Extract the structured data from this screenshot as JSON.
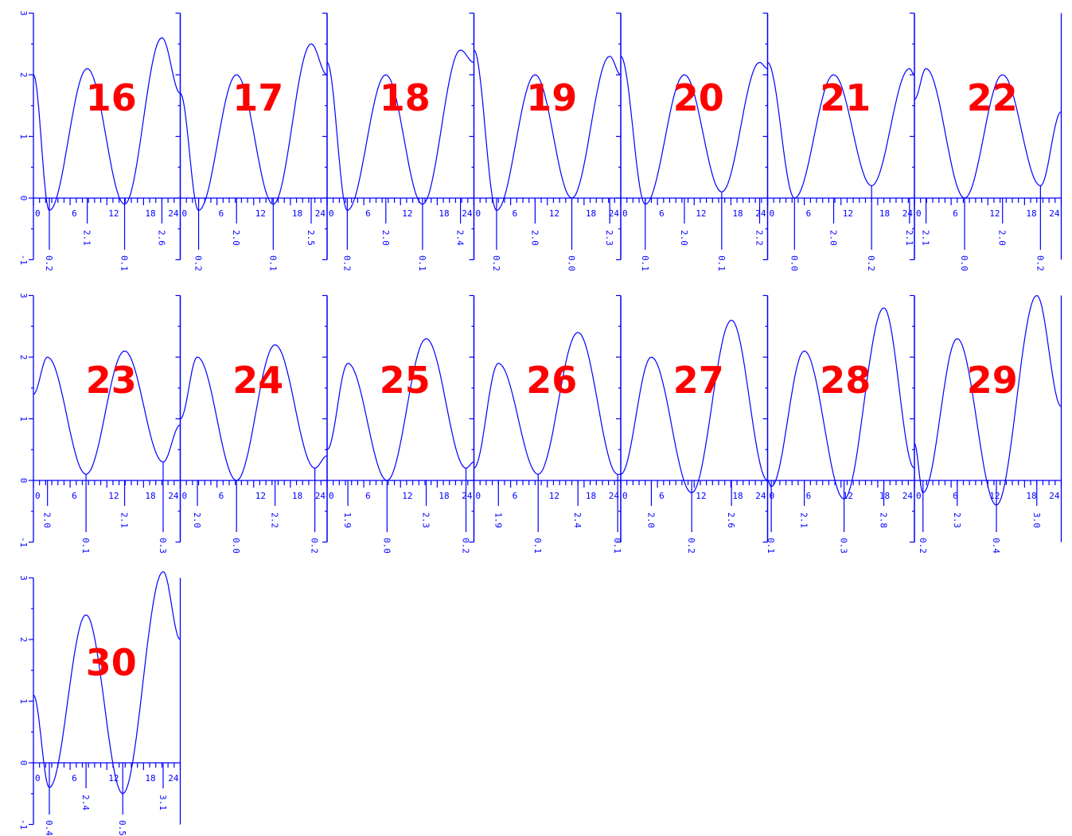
{
  "chart_data": {
    "type": "line",
    "layout": {
      "rows": 3,
      "columns": 7
    },
    "x_ticks": [
      0,
      6,
      12,
      18,
      24
    ],
    "x_tick_labels": [
      "0",
      "6",
      "12",
      "18",
      "24"
    ],
    "xlim": [
      0,
      24
    ],
    "y_ticks": [
      -1,
      0,
      1,
      2,
      3
    ],
    "y_tick_labels": [
      "-1",
      "0",
      "1",
      "2",
      "3"
    ],
    "ylim": [
      -1,
      3
    ],
    "colors": {
      "curve": "#0000ff",
      "label": "#ff0000",
      "axis": "#0000ff"
    },
    "panels": [
      {
        "label": "16",
        "extrema": [
          {
            "x": 0,
            "y": 2.0
          },
          {
            "x": 2.6,
            "y": -0.2
          },
          {
            "x": 8.8,
            "y": 2.1
          },
          {
            "x": 14.9,
            "y": -0.1
          },
          {
            "x": 21.0,
            "y": 2.6
          },
          {
            "x": 24,
            "y": 1.7
          }
        ],
        "labels": [
          {
            "x": 2.6,
            "text": "0.2",
            "type": "low"
          },
          {
            "x": 8.8,
            "text": "2.1",
            "type": "high"
          },
          {
            "x": 14.9,
            "text": "0.1",
            "type": "low"
          },
          {
            "x": 21.0,
            "text": "2.6",
            "type": "high"
          }
        ]
      },
      {
        "label": "17",
        "extrema": [
          {
            "x": 0,
            "y": 1.7
          },
          {
            "x": 3.0,
            "y": -0.2
          },
          {
            "x": 9.2,
            "y": 2.0
          },
          {
            "x": 15.2,
            "y": -0.1
          },
          {
            "x": 21.4,
            "y": 2.5
          },
          {
            "x": 24,
            "y": 2.0
          }
        ],
        "labels": [
          {
            "x": 3.0,
            "text": "0.2",
            "type": "low"
          },
          {
            "x": 9.2,
            "text": "2.0",
            "type": "high"
          },
          {
            "x": 15.2,
            "text": "0.1",
            "type": "low"
          },
          {
            "x": 21.4,
            "text": "2.5",
            "type": "high"
          }
        ]
      },
      {
        "label": "18",
        "extrema": [
          {
            "x": 0,
            "y": 2.2
          },
          {
            "x": 3.3,
            "y": -0.2
          },
          {
            "x": 9.6,
            "y": 2.0
          },
          {
            "x": 15.6,
            "y": -0.1
          },
          {
            "x": 21.8,
            "y": 2.4
          },
          {
            "x": 24,
            "y": 2.2
          }
        ],
        "labels": [
          {
            "x": 3.3,
            "text": "0.2",
            "type": "low"
          },
          {
            "x": 9.6,
            "text": "2.0",
            "type": "high"
          },
          {
            "x": 15.6,
            "text": "0.1",
            "type": "low"
          },
          {
            "x": 21.8,
            "text": "2.4",
            "type": "high"
          }
        ]
      },
      {
        "label": "19",
        "extrema": [
          {
            "x": 0,
            "y": 2.4
          },
          {
            "x": 3.7,
            "y": -0.2
          },
          {
            "x": 10.0,
            "y": 2.0
          },
          {
            "x": 16.0,
            "y": 0.0
          },
          {
            "x": 22.2,
            "y": 2.3
          },
          {
            "x": 24,
            "y": 2.0
          }
        ],
        "labels": [
          {
            "x": 3.7,
            "text": "0.2",
            "type": "low"
          },
          {
            "x": 10.0,
            "text": "2.0",
            "type": "high"
          },
          {
            "x": 16.0,
            "text": "0.0",
            "type": "low"
          },
          {
            "x": 22.2,
            "text": "2.3",
            "type": "high"
          }
        ]
      },
      {
        "label": "20",
        "extrema": [
          {
            "x": 0,
            "y": 2.3
          },
          {
            "x": 4.0,
            "y": -0.1
          },
          {
            "x": 10.4,
            "y": 2.0
          },
          {
            "x": 16.5,
            "y": 0.1
          },
          {
            "x": 22.7,
            "y": 2.2
          },
          {
            "x": 24,
            "y": 2.1
          }
        ],
        "labels": [
          {
            "x": 4.0,
            "text": "0.1",
            "type": "low"
          },
          {
            "x": 10.4,
            "text": "2.0",
            "type": "high"
          },
          {
            "x": 16.5,
            "text": "0.1",
            "type": "low"
          },
          {
            "x": 22.7,
            "text": "2.2",
            "type": "high"
          }
        ]
      },
      {
        "label": "21",
        "extrema": [
          {
            "x": 0,
            "y": 2.2
          },
          {
            "x": 4.4,
            "y": 0.0
          },
          {
            "x": 10.8,
            "y": 2.0
          },
          {
            "x": 17.0,
            "y": 0.2
          },
          {
            "x": 23.2,
            "y": 2.1
          },
          {
            "x": 24,
            "y": 2.0
          }
        ],
        "labels": [
          {
            "x": 4.4,
            "text": "0.0",
            "type": "low"
          },
          {
            "x": 10.8,
            "text": "2.0",
            "type": "high"
          },
          {
            "x": 17.0,
            "text": "0.2",
            "type": "low"
          },
          {
            "x": 23.2,
            "text": "2.1",
            "type": "high"
          }
        ]
      },
      {
        "label": "22",
        "extrema": [
          {
            "x": 0,
            "y": 1.6
          },
          {
            "x": 1.9,
            "y": 2.1
          },
          {
            "x": 8.2,
            "y": 0.0
          },
          {
            "x": 14.4,
            "y": 2.0
          },
          {
            "x": 20.6,
            "y": 0.2
          },
          {
            "x": 24,
            "y": 1.4
          }
        ],
        "labels": [
          {
            "x": 1.9,
            "text": "2.1",
            "type": "high"
          },
          {
            "x": 8.2,
            "text": "0.0",
            "type": "low"
          },
          {
            "x": 14.4,
            "text": "2.0",
            "type": "high"
          },
          {
            "x": 20.6,
            "text": "0.2",
            "type": "low"
          }
        ]
      },
      {
        "label": "23",
        "extrema": [
          {
            "x": 0,
            "y": 1.4
          },
          {
            "x": 2.3,
            "y": 2.0
          },
          {
            "x": 8.6,
            "y": 0.1
          },
          {
            "x": 14.9,
            "y": 2.1
          },
          {
            "x": 21.2,
            "y": 0.3
          },
          {
            "x": 24,
            "y": 0.9
          }
        ],
        "labels": [
          {
            "x": 2.3,
            "text": "2.0",
            "type": "high"
          },
          {
            "x": 8.6,
            "text": "0.1",
            "type": "low"
          },
          {
            "x": 14.9,
            "text": "2.1",
            "type": "high"
          },
          {
            "x": 21.2,
            "text": "0.3",
            "type": "low"
          }
        ]
      },
      {
        "label": "24",
        "extrema": [
          {
            "x": 0,
            "y": 1.0
          },
          {
            "x": 2.8,
            "y": 2.0
          },
          {
            "x": 9.2,
            "y": 0.0
          },
          {
            "x": 15.5,
            "y": 2.2
          },
          {
            "x": 22.0,
            "y": 0.2
          },
          {
            "x": 24,
            "y": 0.4
          }
        ],
        "labels": [
          {
            "x": 2.8,
            "text": "2.0",
            "type": "high"
          },
          {
            "x": 9.2,
            "text": "0.0",
            "type": "low"
          },
          {
            "x": 15.5,
            "text": "2.2",
            "type": "high"
          },
          {
            "x": 22.0,
            "text": "0.2",
            "type": "low"
          }
        ]
      },
      {
        "label": "25",
        "extrema": [
          {
            "x": 0,
            "y": 0.5
          },
          {
            "x": 3.4,
            "y": 1.9
          },
          {
            "x": 9.8,
            "y": 0.0
          },
          {
            "x": 16.2,
            "y": 2.3
          },
          {
            "x": 22.7,
            "y": 0.2
          },
          {
            "x": 24,
            "y": 0.3
          }
        ],
        "labels": [
          {
            "x": 3.4,
            "text": "1.9",
            "type": "high"
          },
          {
            "x": 9.8,
            "text": "0.0",
            "type": "low"
          },
          {
            "x": 16.2,
            "text": "2.3",
            "type": "high"
          },
          {
            "x": 22.7,
            "text": "0.2",
            "type": "low"
          }
        ]
      },
      {
        "label": "26",
        "extrema": [
          {
            "x": 0,
            "y": 0.2
          },
          {
            "x": 4.0,
            "y": 1.9
          },
          {
            "x": 10.5,
            "y": 0.1
          },
          {
            "x": 17.0,
            "y": 2.4
          },
          {
            "x": 23.5,
            "y": 0.1
          },
          {
            "x": 24,
            "y": 0.1
          }
        ],
        "labels": [
          {
            "x": 4.0,
            "text": "1.9",
            "type": "high"
          },
          {
            "x": 10.5,
            "text": "0.1",
            "type": "low"
          },
          {
            "x": 17.0,
            "text": "2.4",
            "type": "high"
          },
          {
            "x": 23.5,
            "text": "0.1",
            "type": "low"
          }
        ]
      },
      {
        "label": "27",
        "extrema": [
          {
            "x": 0,
            "y": 0.1
          },
          {
            "x": 5.0,
            "y": 2.0
          },
          {
            "x": 11.6,
            "y": -0.2
          },
          {
            "x": 18.1,
            "y": 2.6
          },
          {
            "x": 24,
            "y": 0.0
          }
        ],
        "labels": [
          {
            "x": 5.0,
            "text": "2.0",
            "type": "high"
          },
          {
            "x": 11.6,
            "text": "0.2",
            "type": "low"
          },
          {
            "x": 18.1,
            "text": "2.6",
            "type": "high"
          }
        ]
      },
      {
        "label": "28",
        "extrema": [
          {
            "x": 0,
            "y": 0.0
          },
          {
            "x": 0.6,
            "y": -0.1
          },
          {
            "x": 6.0,
            "y": 2.1
          },
          {
            "x": 12.5,
            "y": -0.3
          },
          {
            "x": 19.0,
            "y": 2.8
          },
          {
            "x": 24,
            "y": 0.2
          }
        ],
        "labels": [
          {
            "x": 0.6,
            "text": "0.1",
            "type": "low"
          },
          {
            "x": 6.0,
            "text": "2.1",
            "type": "high"
          },
          {
            "x": 12.5,
            "text": "0.3",
            "type": "low"
          },
          {
            "x": 19.0,
            "text": "2.8",
            "type": "high"
          }
        ]
      },
      {
        "label": "29",
        "extrema": [
          {
            "x": 0,
            "y": 0.6
          },
          {
            "x": 1.4,
            "y": -0.2
          },
          {
            "x": 7.0,
            "y": 2.3
          },
          {
            "x": 13.4,
            "y": -0.4
          },
          {
            "x": 20.0,
            "y": 3.0
          },
          {
            "x": 24,
            "y": 1.2
          }
        ],
        "labels": [
          {
            "x": 1.4,
            "text": "0.2",
            "type": "low"
          },
          {
            "x": 7.0,
            "text": "2.3",
            "type": "high"
          },
          {
            "x": 13.4,
            "text": "0.4",
            "type": "low"
          },
          {
            "x": 20.0,
            "text": "3.0",
            "type": "high"
          }
        ]
      },
      {
        "label": "30",
        "extrema": [
          {
            "x": 0,
            "y": 1.1
          },
          {
            "x": 2.6,
            "y": -0.4
          },
          {
            "x": 8.6,
            "y": 2.4
          },
          {
            "x": 14.6,
            "y": -0.5
          },
          {
            "x": 21.2,
            "y": 3.1
          },
          {
            "x": 24,
            "y": 2.0
          }
        ],
        "labels": [
          {
            "x": 2.6,
            "text": "0.4",
            "type": "low"
          },
          {
            "x": 8.6,
            "text": "2.4",
            "type": "high"
          },
          {
            "x": 14.6,
            "text": "0.5",
            "type": "low"
          },
          {
            "x": 21.2,
            "text": "3.1",
            "type": "high"
          }
        ]
      }
    ]
  }
}
